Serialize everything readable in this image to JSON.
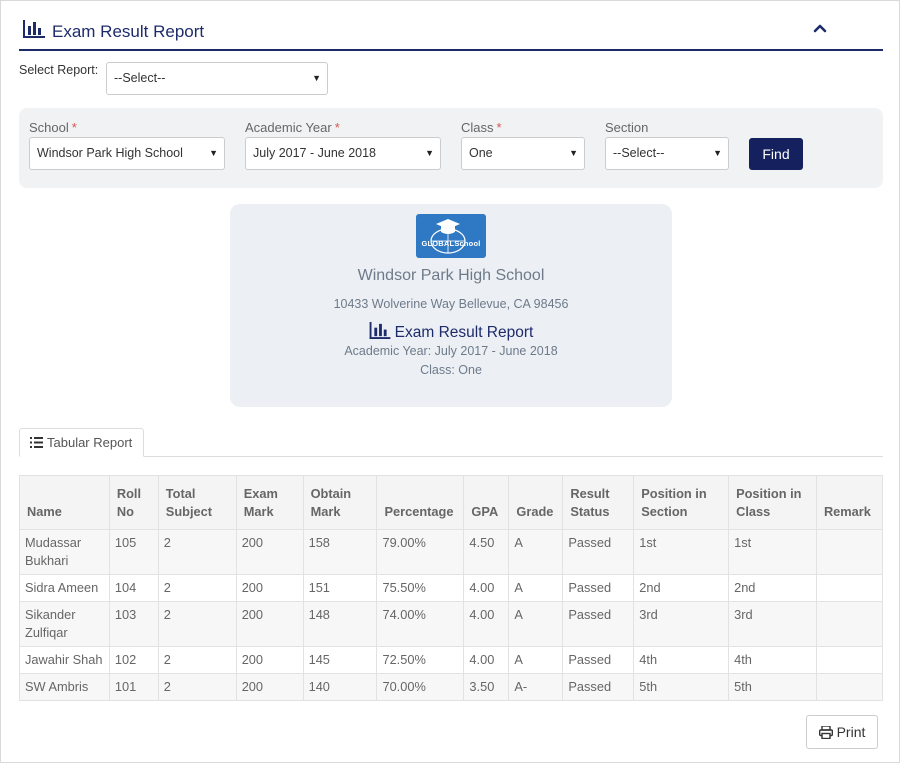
{
  "header": {
    "title": "Exam Result Report",
    "icon": "bar-chart-icon",
    "collapse_icon": "chevron-up-icon",
    "accent_color": "#1e2b6b"
  },
  "select_report": {
    "label": "Select Report:",
    "value": "--Select--"
  },
  "filters": {
    "school": {
      "label": "School",
      "required": "*",
      "value": "Windsor Park High School"
    },
    "academic_year": {
      "label": "Academic Year",
      "required": "*",
      "value": "July 2017 - June 2018"
    },
    "class": {
      "label": "Class",
      "required": "*",
      "value": "One"
    },
    "section": {
      "label": "Section",
      "value": "--Select--"
    },
    "find_label": "Find"
  },
  "card": {
    "logo_text": "GLOBALSchool",
    "school_name": "Windsor Park High School",
    "address": "10433 Wolverine Way Bellevue, CA 98456",
    "report_title": "Exam Result Report",
    "academic_year": "Academic Year: July 2017 - June 2018",
    "class": "Class: One"
  },
  "tab": {
    "label": "Tabular Report",
    "icon": "list-icon"
  },
  "table": {
    "columns": [
      "Name",
      "Roll No",
      "Total Subject",
      "Exam Mark",
      "Obtain Mark",
      "Percentage",
      "GPA",
      "Grade",
      "Result Status",
      "Position in Section",
      "Position in Class",
      "Remark"
    ],
    "rows": [
      [
        "Mudassar Bukhari",
        "105",
        "2",
        "200",
        "158",
        "79.00%",
        "4.50",
        "A",
        "Passed",
        "1st",
        "1st",
        ""
      ],
      [
        "Sidra Ameen",
        "104",
        "2",
        "200",
        "151",
        "75.50%",
        "4.00",
        "A",
        "Passed",
        "2nd",
        "2nd",
        ""
      ],
      [
        "Sikander Zulfiqar",
        "103",
        "2",
        "200",
        "148",
        "74.00%",
        "4.00",
        "A",
        "Passed",
        "3rd",
        "3rd",
        ""
      ],
      [
        "Jawahir Shah",
        "102",
        "2",
        "200",
        "145",
        "72.50%",
        "4.00",
        "A",
        "Passed",
        "4th",
        "4th",
        ""
      ],
      [
        "SW Ambris",
        "101",
        "2",
        "200",
        "140",
        "70.00%",
        "3.50",
        "A-",
        "Passed",
        "5th",
        "5th",
        ""
      ]
    ]
  },
  "print": {
    "label": "Print",
    "icon": "printer-icon"
  }
}
